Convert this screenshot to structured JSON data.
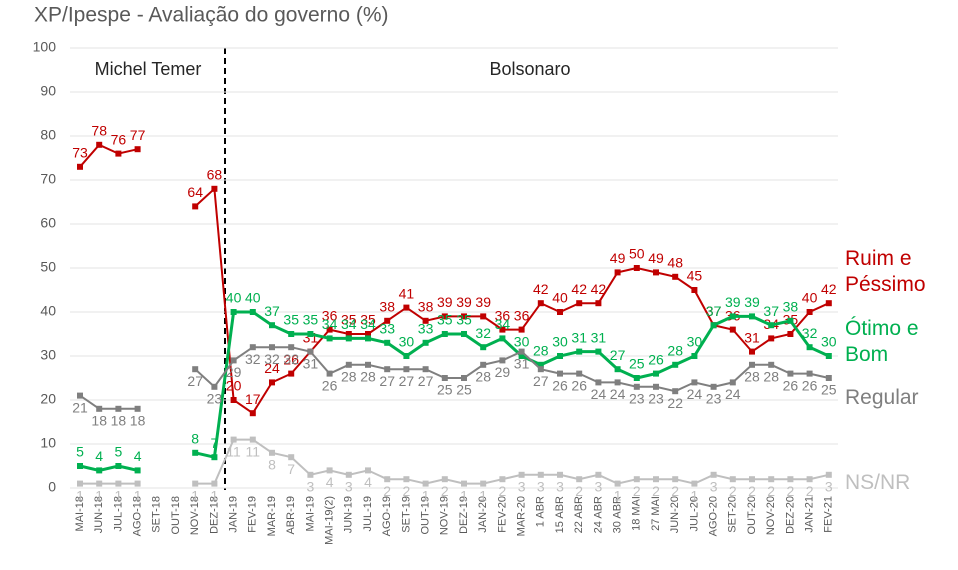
{
  "chart_data": {
    "type": "line",
    "title": "XP/Ipespe - Avaliação do governo (%)",
    "annotations": [
      "Michel Temer",
      "Bolsonaro"
    ],
    "categories": [
      "MAI-18",
      "JUN-18",
      "JUL-18",
      "AGO-18",
      "SET-18",
      "OUT-18",
      "NOV-18",
      "DEZ-18",
      "JAN-19",
      "FEV-19",
      "MAR-19",
      "ABR-19",
      "MAI-19",
      "MAI-19(2)",
      "JUN-19",
      "JUL-19",
      "AGO-19",
      "SET-19",
      "OUT-19",
      "NOV-19",
      "DEZ-19",
      "JAN-20",
      "FEV-20",
      "MAR-20",
      "1 ABR",
      "15 ABR",
      "22 ABR",
      "24 ABR",
      "30 ABR",
      "18 MAI",
      "27 MAI",
      "JUN-20",
      "JUL-20",
      "AGO-20",
      "SET-20",
      "OUT-20",
      "NOV-20",
      "DEZ-20",
      "JAN-21",
      "FEV-21"
    ],
    "series": [
      {
        "name": "Ruim e Péssimo",
        "color": "#c00000",
        "values": [
          73,
          78,
          76,
          77,
          null,
          null,
          64,
          68,
          20,
          17,
          24,
          26,
          31,
          36,
          35,
          35,
          38,
          41,
          38,
          39,
          39,
          39,
          36,
          36,
          42,
          40,
          42,
          42,
          49,
          50,
          49,
          48,
          45,
          37,
          36,
          31,
          34,
          35,
          40,
          42
        ]
      },
      {
        "name": "Ótimo e Bom",
        "color": "#00b050",
        "values": [
          5,
          4,
          5,
          4,
          null,
          null,
          8,
          7,
          40,
          40,
          37,
          35,
          35,
          34,
          34,
          34,
          33,
          30,
          33,
          35,
          35,
          32,
          34,
          30,
          28,
          30,
          31,
          31,
          27,
          25,
          26,
          28,
          30,
          37,
          39,
          39,
          37,
          38,
          32,
          30
        ]
      },
      {
        "name": "Regular",
        "color": "#7f7f7f",
        "values": [
          21,
          18,
          18,
          18,
          null,
          null,
          27,
          23,
          29,
          32,
          32,
          32,
          31,
          26,
          28,
          28,
          27,
          27,
          27,
          25,
          25,
          28,
          29,
          31,
          27,
          26,
          26,
          24,
          24,
          23,
          23,
          22,
          24,
          23,
          24,
          28,
          28,
          26,
          26,
          25
        ]
      },
      {
        "name": "NS/NR",
        "color": "#bfbfbf",
        "values": [
          1,
          1,
          1,
          1,
          null,
          null,
          1,
          1,
          11,
          11,
          8,
          7,
          3,
          4,
          3,
          4,
          2,
          2,
          1,
          2,
          1,
          1,
          2,
          3,
          3,
          3,
          2,
          3,
          1,
          2,
          2,
          2,
          1,
          3,
          2,
          2,
          2,
          2,
          2,
          3
        ]
      }
    ],
    "ylim": [
      0,
      100
    ],
    "yticks": [
      0,
      10,
      20,
      30,
      40,
      50,
      60,
      70,
      80,
      90,
      100
    ],
    "grid": true
  }
}
